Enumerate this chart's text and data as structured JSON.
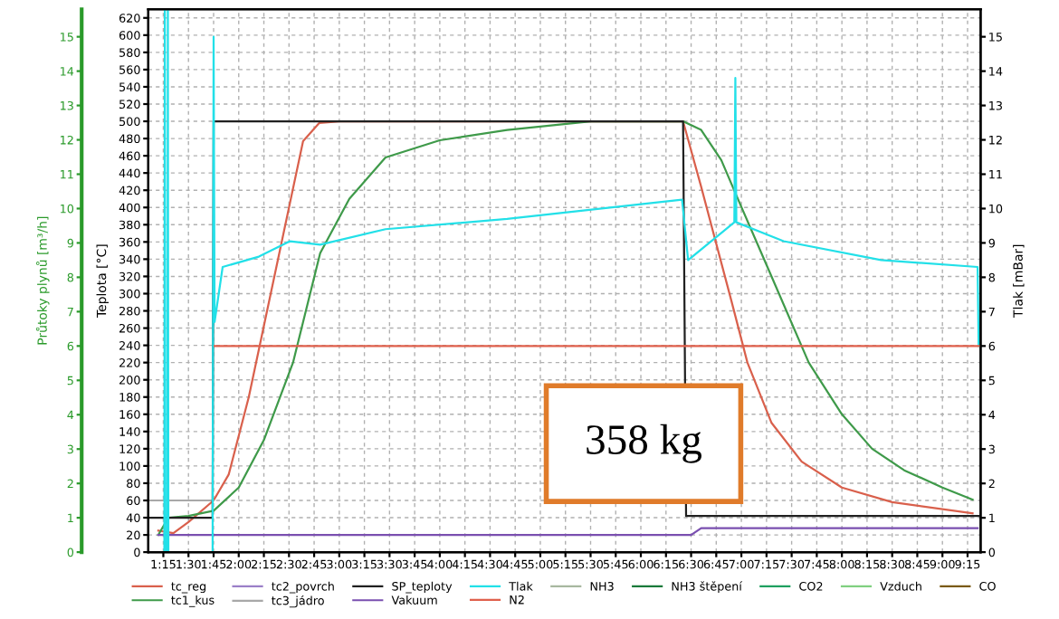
{
  "chart_data": {
    "type": "line",
    "ylabel": "Teplota [°C]",
    "y2label": "Tlak [mBar]",
    "y3label": "Průtoky plynů [m³/h]",
    "xlim": [
      1.1,
      9.38
    ],
    "xticks": [
      {
        "value": 1.25,
        "label": "1:15"
      },
      {
        "value": 1.5,
        "label": "1:30"
      },
      {
        "value": 1.75,
        "label": "1:45"
      },
      {
        "value": 2.0,
        "label": "2:00"
      },
      {
        "value": 2.25,
        "label": "2:15"
      },
      {
        "value": 2.5,
        "label": "2:30"
      },
      {
        "value": 2.75,
        "label": "2:45"
      },
      {
        "value": 3.0,
        "label": "3:00"
      },
      {
        "value": 3.25,
        "label": "3:15"
      },
      {
        "value": 3.5,
        "label": "3:30"
      },
      {
        "value": 3.75,
        "label": "3:45"
      },
      {
        "value": 4.0,
        "label": "4:00"
      },
      {
        "value": 4.25,
        "label": "4:15"
      },
      {
        "value": 4.5,
        "label": "4:30"
      },
      {
        "value": 4.75,
        "label": "4:45"
      },
      {
        "value": 5.0,
        "label": "5:00"
      },
      {
        "value": 5.25,
        "label": "5:15"
      },
      {
        "value": 5.5,
        "label": "5:30"
      },
      {
        "value": 5.75,
        "label": "5:45"
      },
      {
        "value": 6.0,
        "label": "6:00"
      },
      {
        "value": 6.25,
        "label": "6:15"
      },
      {
        "value": 6.5,
        "label": "6:30"
      },
      {
        "value": 6.75,
        "label": "6:45"
      },
      {
        "value": 7.0,
        "label": "7:00"
      },
      {
        "value": 7.25,
        "label": "7:15"
      },
      {
        "value": 7.5,
        "label": "7:30"
      },
      {
        "value": 7.75,
        "label": "7:45"
      },
      {
        "value": 8.0,
        "label": "8:00"
      },
      {
        "value": 8.25,
        "label": "8:15"
      },
      {
        "value": 8.5,
        "label": "8:30"
      },
      {
        "value": 8.75,
        "label": "8:45"
      },
      {
        "value": 9.0,
        "label": "9:00"
      },
      {
        "value": 9.25,
        "label": "9:15"
      }
    ],
    "ylim": [
      0,
      630
    ],
    "yticks": [
      0,
      20,
      40,
      60,
      80,
      100,
      120,
      140,
      160,
      180,
      200,
      220,
      240,
      260,
      280,
      300,
      320,
      340,
      360,
      380,
      400,
      420,
      440,
      460,
      480,
      500,
      520,
      540,
      560,
      580,
      600,
      620
    ],
    "y2lim": [
      0,
      15.8
    ],
    "y2ticks": [
      0,
      1,
      2,
      3,
      4,
      5,
      6,
      7,
      8,
      9,
      10,
      11,
      12,
      13,
      14,
      15
    ],
    "y3lim": [
      0,
      15.8
    ],
    "y3ticks": [
      0,
      1,
      2,
      3,
      4,
      5,
      6,
      7,
      8,
      9,
      10,
      11,
      12,
      13,
      14,
      15
    ],
    "grid": true,
    "legend": "bottom",
    "marker": "none",
    "line_style": "solid",
    "annotations": [
      "358 kg"
    ],
    "series": [
      {
        "name": "tc_reg",
        "color": "#d9604c",
        "axis": "y",
        "x": [
          1.2,
          1.35,
          1.5,
          1.75,
          1.9,
          2.1,
          2.3,
          2.5,
          2.64,
          2.8,
          3.0,
          6.42,
          6.6,
          6.9,
          7.06,
          7.3,
          7.6,
          8.0,
          8.5,
          9.3
        ],
        "values": [
          25,
          22,
          35,
          60,
          90,
          180,
          290,
          400,
          477,
          498,
          500,
          500,
          424,
          292,
          220,
          150,
          105,
          75,
          58,
          45
        ]
      },
      {
        "name": "tc1_kus",
        "color": "#3f9a4a",
        "axis": "y",
        "x": [
          1.2,
          1.3,
          1.5,
          1.75,
          2.0,
          2.25,
          2.54,
          2.81,
          3.1,
          3.46,
          4.0,
          4.67,
          5.5,
          6.42,
          6.6,
          6.8,
          6.95,
          7.3,
          7.67,
          8.0,
          8.3,
          8.62,
          9.0,
          9.3
        ],
        "values": [
          20,
          40,
          42,
          48,
          75,
          130,
          220,
          347,
          410,
          458,
          478,
          490,
          500,
          500,
          490,
          455,
          414,
          320,
          220,
          160,
          120,
          95,
          75,
          61
        ]
      },
      {
        "name": "tc2_povrch",
        "color": "#9b7fc8",
        "axis": "y"
      },
      {
        "name": "tc3_jádro",
        "color": "#a8a8a8",
        "axis": "y",
        "x": [
          1.12,
          1.75
        ],
        "values": [
          60,
          60
        ]
      },
      {
        "name": "SP_teploty",
        "color": "#202020",
        "axis": "y",
        "x": [
          1.12,
          1.74,
          1.75,
          6.42,
          6.45,
          9.36
        ],
        "values": [
          40,
          40,
          500,
          500,
          42,
          42
        ]
      },
      {
        "name": "Vakuum",
        "color": "#7a4fb0",
        "axis": "y2",
        "x": [
          1.2,
          2.0,
          6.5,
          6.6,
          9.35
        ],
        "values": [
          0.5,
          0.5,
          0.5,
          0.7,
          0.7
        ]
      },
      {
        "name": "Tlak",
        "color": "#22e0e8",
        "axis": "y2",
        "x": [
          1.2,
          1.26,
          1.265,
          1.27,
          1.29,
          1.295,
          1.3,
          1.74,
          1.75,
          1.76,
          1.84,
          2.2,
          2.51,
          2.81,
          3.46,
          4.67,
          6.41,
          6.47,
          6.93,
          6.94,
          6.95,
          7.42,
          8.39,
          9.35,
          9.36
        ],
        "values": [
          0,
          0,
          15.8,
          0,
          0,
          15.8,
          0,
          0,
          15,
          6.7,
          8.3,
          8.6,
          9.05,
          8.95,
          9.4,
          9.7,
          10.26,
          8.5,
          9.6,
          13.8,
          9.6,
          9.05,
          8.5,
          8.3,
          6
        ]
      },
      {
        "name": "N2",
        "color": "#e0604c",
        "axis": "y3",
        "x": [
          1.76,
          9.36
        ],
        "values": [
          6,
          6
        ]
      },
      {
        "name": "NH3",
        "color": "#a8b8a0",
        "axis": "y3"
      },
      {
        "name": "NH3 štěpení",
        "color": "#1a7a3a",
        "axis": "y3"
      },
      {
        "name": "CO2",
        "color": "#1fa060",
        "axis": "y3"
      },
      {
        "name": "Vzduch",
        "color": "#80d080",
        "axis": "y3"
      },
      {
        "name": "CO",
        "color": "#7a5a10",
        "axis": "y3"
      }
    ]
  }
}
